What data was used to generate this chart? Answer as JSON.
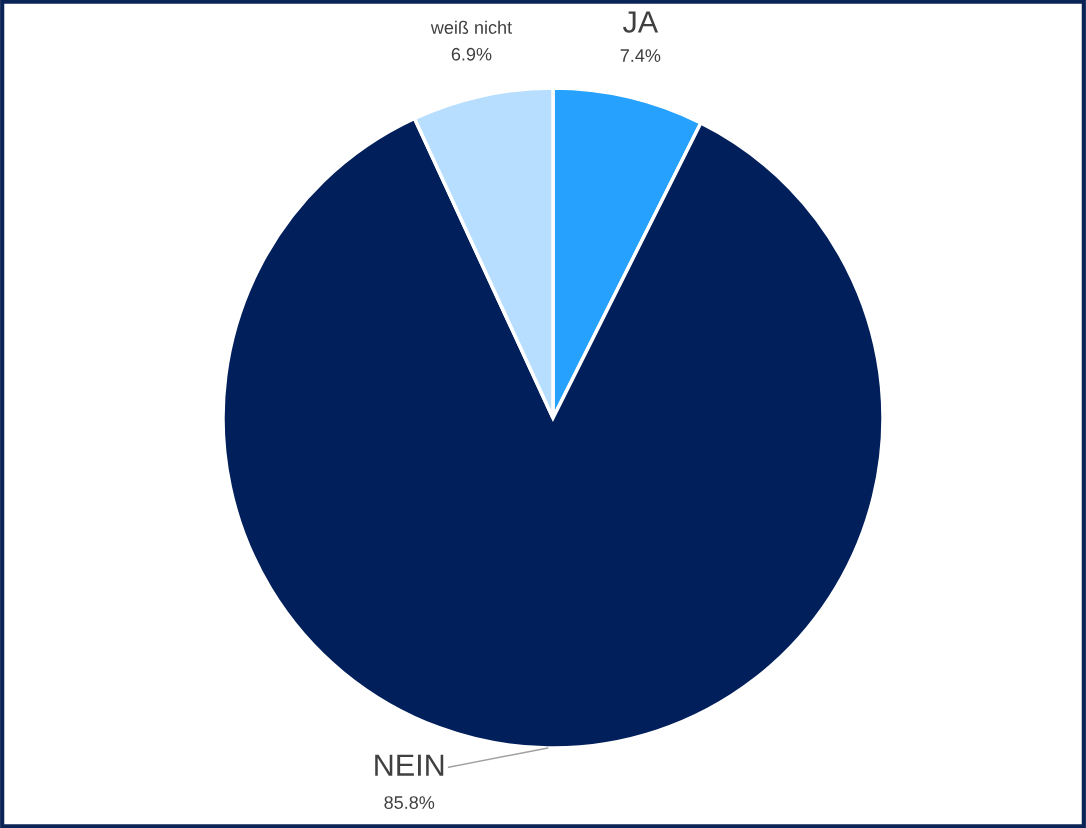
{
  "chart_data": {
    "type": "pie",
    "categories": [
      "JA",
      "NEIN",
      "weiß nicht"
    ],
    "values": [
      7.4,
      85.8,
      6.9
    ],
    "colors": [
      "#27a1fe",
      "#001f5b",
      "#b7deff"
    ],
    "value_labels": [
      "7.4%",
      "85.8%",
      "6.9%"
    ]
  }
}
